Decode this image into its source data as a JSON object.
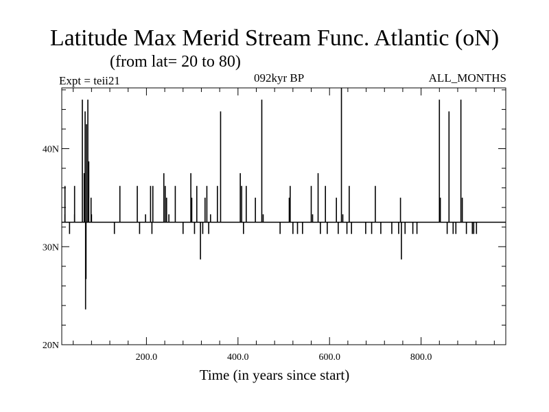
{
  "chart_data": {
    "type": "line",
    "title": "Latitude Max Merid Stream Func. Atlantic (oN)",
    "subtitle": "(from lat= 20 to 80)",
    "left_label": "Expt = teii21",
    "center_label": "092kyr BP",
    "right_label": "ALL_MONTHS",
    "xlabel": "Time (in years since start)",
    "ylabel": "",
    "xlim": [
      15,
      985
    ],
    "ylim": [
      20,
      46.2
    ],
    "x_ticks": [
      200,
      400,
      600,
      800
    ],
    "x_tick_labels": [
      "200.0",
      "400.0",
      "600.0",
      "800.0"
    ],
    "y_ticks": [
      20,
      30,
      40
    ],
    "y_tick_labels": [
      "20N",
      "30N",
      "40N"
    ],
    "baseline": 32.5,
    "series": [
      {
        "values": [
          [
            22,
            36.2
          ],
          [
            22,
            33.3
          ],
          [
            32,
            31.3
          ],
          [
            43,
            36.2
          ],
          [
            43,
            33.3
          ],
          [
            60,
            45.0
          ],
          [
            64,
            37.5
          ],
          [
            66,
            43.8
          ],
          [
            67,
            23.6
          ],
          [
            68,
            26.7
          ],
          [
            69,
            42.5
          ],
          [
            72,
            45.0
          ],
          [
            74,
            38.7
          ],
          [
            79,
            35.0
          ],
          [
            80,
            33.3
          ],
          [
            130,
            31.3
          ],
          [
            142,
            36.2
          ],
          [
            180,
            36.2
          ],
          [
            185,
            31.3
          ],
          [
            198,
            33.3
          ],
          [
            209,
            36.2
          ],
          [
            212,
            31.3
          ],
          [
            214,
            36.2
          ],
          [
            238,
            37.5
          ],
          [
            241,
            36.2
          ],
          [
            244,
            35.0
          ],
          [
            249,
            33.3
          ],
          [
            263,
            36.2
          ],
          [
            280,
            31.3
          ],
          [
            297,
            37.5
          ],
          [
            299,
            35.0
          ],
          [
            305,
            31.3
          ],
          [
            310,
            36.2
          ],
          [
            318,
            28.7
          ],
          [
            323,
            31.3
          ],
          [
            328,
            35.0
          ],
          [
            332,
            36.2
          ],
          [
            336,
            31.3
          ],
          [
            340,
            33.3
          ],
          [
            355,
            36.2
          ],
          [
            362,
            43.8
          ],
          [
            405,
            37.5
          ],
          [
            408,
            36.2
          ],
          [
            412,
            31.3
          ],
          [
            418,
            36.2
          ],
          [
            438,
            35.0
          ],
          [
            452,
            45.0
          ],
          [
            455,
            33.3
          ],
          [
            492,
            31.3
          ],
          [
            512,
            35.0
          ],
          [
            514,
            36.2
          ],
          [
            520,
            31.3
          ],
          [
            530,
            31.3
          ],
          [
            541,
            31.3
          ],
          [
            560,
            36.2
          ],
          [
            563,
            33.3
          ],
          [
            575,
            37.5
          ],
          [
            580,
            31.3
          ],
          [
            591,
            36.2
          ],
          [
            595,
            31.3
          ],
          [
            615,
            35.0
          ],
          [
            619,
            31.3
          ],
          [
            626,
            46.2
          ],
          [
            629,
            33.3
          ],
          [
            638,
            31.3
          ],
          [
            643,
            36.2
          ],
          [
            648,
            31.3
          ],
          [
            679,
            31.3
          ],
          [
            692,
            31.3
          ],
          [
            700,
            36.2
          ],
          [
            712,
            31.3
          ],
          [
            736,
            31.3
          ],
          [
            751,
            31.3
          ],
          [
            755,
            35.0
          ],
          [
            757,
            28.7
          ],
          [
            765,
            31.3
          ],
          [
            782,
            31.3
          ],
          [
            791,
            31.3
          ],
          [
            840,
            45.0
          ],
          [
            842,
            35.0
          ],
          [
            857,
            31.3
          ],
          [
            861,
            43.8
          ],
          [
            870,
            31.3
          ],
          [
            876,
            31.3
          ],
          [
            887,
            45.0
          ],
          [
            890,
            35.0
          ],
          [
            899,
            31.3
          ],
          [
            912,
            31.3
          ],
          [
            915,
            31.3
          ],
          [
            921,
            31.3
          ]
        ]
      }
    ]
  }
}
